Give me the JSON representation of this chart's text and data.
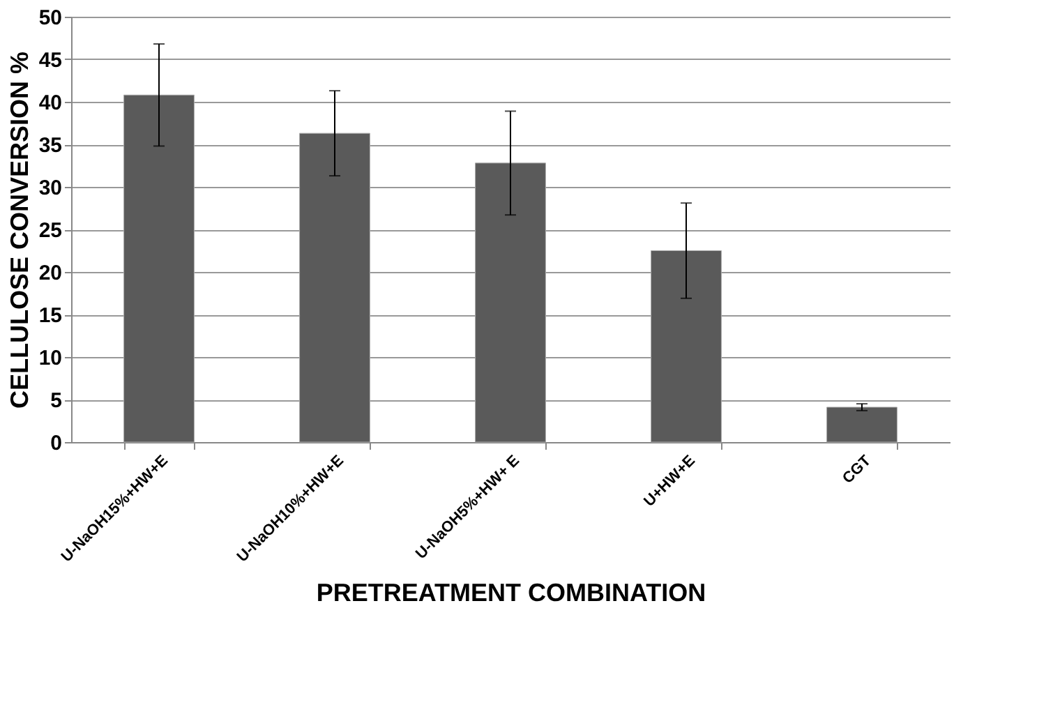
{
  "chart_data": {
    "type": "bar",
    "xlabel": "PRETREATMENT COMBINATION",
    "ylabel": "CELLULOSE CONVERSION %",
    "categories": [
      "U-NaOH15%+HW+E",
      "U-NaOH10%+HW+E",
      "U-NaOH5%+HW+ E",
      "U+HW+E",
      "CGT"
    ],
    "values": [
      40.8,
      36.3,
      32.8,
      22.5,
      4.1
    ],
    "errors": [
      6,
      5,
      6.1,
      5.6,
      0.4
    ],
    "color": "#5a5a5a",
    "ylim": [
      0,
      50
    ],
    "yticks": [
      0,
      5,
      10,
      15,
      20,
      25,
      30,
      35,
      40,
      45,
      50
    ],
    "grid": "y"
  }
}
